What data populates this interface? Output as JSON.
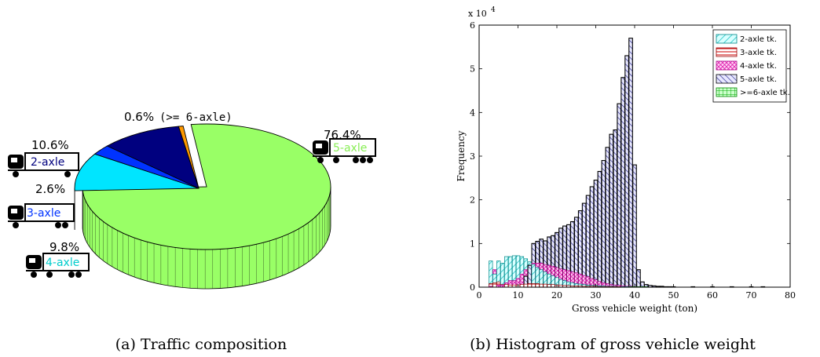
{
  "captions": {
    "a": "(a) Traffic composition",
    "b": "(b) Histogram of gross vehicle weight"
  },
  "chart_data": [
    {
      "type": "pie",
      "slices": [
        {
          "percent_label": "76.4%",
          "value": 76.4,
          "truck_label": "5-axle",
          "color": "#99ff66"
        },
        {
          "percent_label": "9.8%",
          "value": 9.8,
          "truck_label": "4-axle",
          "color": "#00e5ff"
        },
        {
          "percent_label": "2.6%",
          "value": 2.6,
          "truck_label": "3-axle",
          "color": "#0033ff"
        },
        {
          "percent_label": "10.6%",
          "value": 10.6,
          "truck_label": "2-axle",
          "color": "#00007f"
        },
        {
          "percent_label": "0.6%",
          "value": 0.6,
          "truck_label": "(>= 6-axle)",
          "color": "#ff9900"
        }
      ],
      "truck_label_colors": {
        "2-axle": "#00007f",
        "3-axle": "#0033ff",
        "4-axle": "#00e5ff",
        "5-axle": "#99ff66"
      }
    },
    {
      "type": "bar",
      "stacked": true,
      "xlabel": "Gross vehicle weight (ton)",
      "ylabel": "Frequency",
      "y_exponent_label": "x 10",
      "y_exponent_power": "4",
      "xlim": [
        0,
        80
      ],
      "ylim": [
        0,
        6
      ],
      "x_ticks": [
        0,
        10,
        20,
        30,
        40,
        50,
        60,
        70,
        80
      ],
      "y_ticks": [
        0,
        1,
        2,
        3,
        4,
        5,
        6
      ],
      "bin_width": 1,
      "x": [
        3,
        4,
        5,
        6,
        7,
        8,
        9,
        10,
        11,
        12,
        13,
        14,
        15,
        16,
        17,
        18,
        19,
        20,
        21,
        22,
        23,
        24,
        25,
        26,
        27,
        28,
        29,
        30,
        31,
        32,
        33,
        34,
        35,
        36,
        37,
        38,
        39,
        40,
        41,
        42,
        43,
        44,
        45,
        46,
        47,
        48,
        49,
        50,
        55,
        60,
        65,
        70,
        73
      ],
      "series": [
        {
          "name": "2-axle tk.",
          "color": "#00cccc",
          "values": [
            0.6,
            0.3,
            0.6,
            0.55,
            0.7,
            0.7,
            0.72,
            0.72,
            0.7,
            0.65,
            0.58,
            0.52,
            0.45,
            0.4,
            0.35,
            0.3,
            0.26,
            0.22,
            0.18,
            0.15,
            0.12,
            0.1,
            0.08,
            0.07,
            0.06,
            0.05,
            0.04,
            0.04,
            0.03,
            0.03,
            0.02,
            0.02,
            0.02,
            0.01,
            0.01,
            0.01,
            0.01,
            0.01,
            0,
            0,
            0,
            0,
            0,
            0,
            0,
            0,
            0,
            0,
            0,
            0,
            0,
            0,
            0
          ]
        },
        {
          "name": "3-axle tk.",
          "color": "#cc0000",
          "values": [
            0.08,
            0.1,
            0.12,
            0.06,
            0.06,
            0.05,
            0.05,
            0.05,
            0.06,
            0.07,
            0.08,
            0.08,
            0.08,
            0.07,
            0.07,
            0.06,
            0.06,
            0.05,
            0.05,
            0.04,
            0.04,
            0.03,
            0.03,
            0.03,
            0.02,
            0.02,
            0.02,
            0.02,
            0.01,
            0.01,
            0.01,
            0.01,
            0.01,
            0.01,
            0,
            0,
            0,
            0,
            0,
            0,
            0,
            0,
            0,
            0,
            0,
            0,
            0,
            0,
            0,
            0,
            0,
            0,
            0
          ]
        },
        {
          "name": "4-axle tk.",
          "color": "#ff33cc",
          "values": [
            0.02,
            0.4,
            0.05,
            0.05,
            0.1,
            0.15,
            0.15,
            0.2,
            0.3,
            0.4,
            0.5,
            0.55,
            0.55,
            0.55,
            0.52,
            0.5,
            0.48,
            0.45,
            0.42,
            0.4,
            0.38,
            0.35,
            0.33,
            0.3,
            0.27,
            0.24,
            0.2,
            0.17,
            0.13,
            0.1,
            0.08,
            0.06,
            0.05,
            0.04,
            0.03,
            0.02,
            0.02,
            0.01,
            0.01,
            0,
            0,
            0,
            0,
            0,
            0,
            0,
            0,
            0,
            0,
            0,
            0,
            0,
            0
          ]
        },
        {
          "name": "5-axle tk.",
          "color": "#3333aa",
          "values": [
            0,
            0,
            0,
            0,
            0,
            0,
            0,
            0,
            0,
            0.25,
            0.5,
            1.0,
            1.05,
            1.1,
            1.06,
            1.15,
            1.18,
            1.25,
            1.35,
            1.4,
            1.43,
            1.5,
            1.6,
            1.75,
            1.92,
            2.1,
            2.3,
            2.45,
            2.65,
            2.9,
            3.2,
            3.5,
            3.6,
            4.2,
            4.8,
            5.3,
            5.7,
            2.8,
            0.4,
            0.12,
            0.06,
            0.04,
            0.03,
            0.02,
            0.02,
            0.01,
            0.01,
            0.01,
            0.01,
            0.01,
            0.01,
            0.01,
            0.01
          ]
        },
        {
          "name": ">=6-axle tk.",
          "color": "#00cc00",
          "values": [
            0,
            0,
            0,
            0,
            0,
            0,
            0,
            0,
            0,
            0,
            0,
            0,
            0,
            0,
            0,
            0,
            0,
            0,
            0,
            0,
            0,
            0,
            0,
            0,
            0,
            0,
            0,
            0,
            0,
            0,
            0,
            0,
            0,
            0,
            0,
            0,
            0.01,
            0.01,
            0.01,
            0.01,
            0.01,
            0,
            0,
            0,
            0,
            0,
            0,
            0,
            0,
            0,
            0,
            0,
            0
          ]
        }
      ],
      "legend_position": "top-right"
    }
  ]
}
